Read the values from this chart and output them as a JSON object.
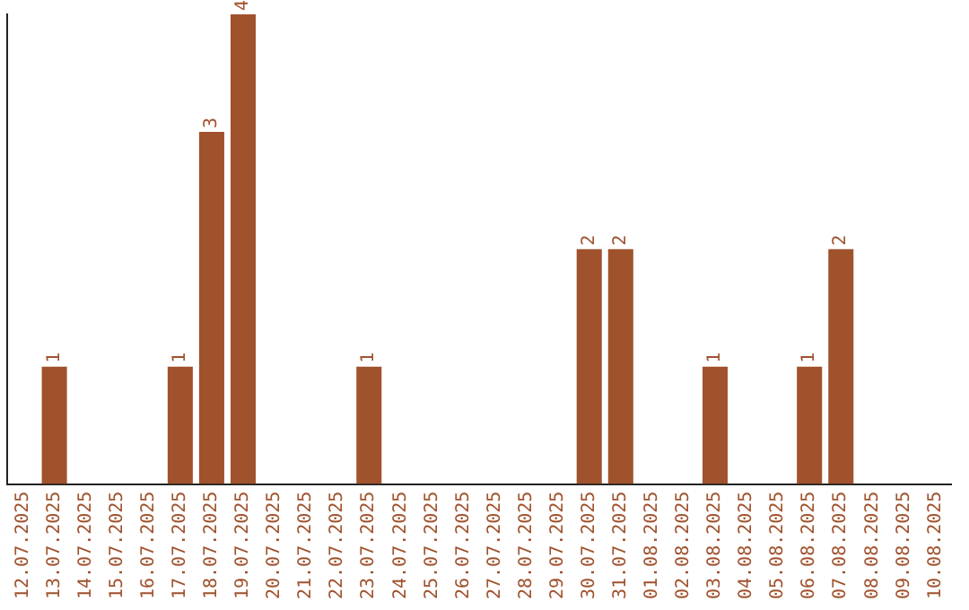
{
  "chart_data": {
    "type": "bar",
    "categories": [
      "12.07.2025",
      "13.07.2025",
      "14.07.2025",
      "15.07.2025",
      "16.07.2025",
      "17.07.2025",
      "18.07.2025",
      "19.07.2025",
      "20.07.2025",
      "21.07.2025",
      "22.07.2025",
      "23.07.2025",
      "24.07.2025",
      "25.07.2025",
      "26.07.2025",
      "27.07.2025",
      "28.07.2025",
      "29.07.2025",
      "30.07.2025",
      "31.07.2025",
      "01.08.2025",
      "02.08.2025",
      "03.08.2025",
      "04.08.2025",
      "05.08.2025",
      "06.08.2025",
      "07.08.2025",
      "08.08.2025",
      "09.08.2025",
      "10.08.2025"
    ],
    "values": [
      0,
      1,
      0,
      0,
      0,
      1,
      3,
      4,
      0,
      0,
      0,
      1,
      0,
      0,
      0,
      0,
      0,
      0,
      2,
      2,
      0,
      0,
      1,
      0,
      0,
      1,
      2,
      0,
      0,
      0
    ],
    "value_labels": [
      null,
      "1",
      null,
      null,
      null,
      "1",
      "3",
      "4",
      null,
      null,
      null,
      "1",
      null,
      null,
      null,
      null,
      null,
      null,
      "2",
      "2",
      null,
      null,
      "1",
      null,
      null,
      "1",
      "2",
      null,
      null,
      null
    ],
    "color": "#a0522d",
    "ylim": [
      0,
      4
    ],
    "tick_labels": "x",
    "grid": false,
    "legend": false
  }
}
